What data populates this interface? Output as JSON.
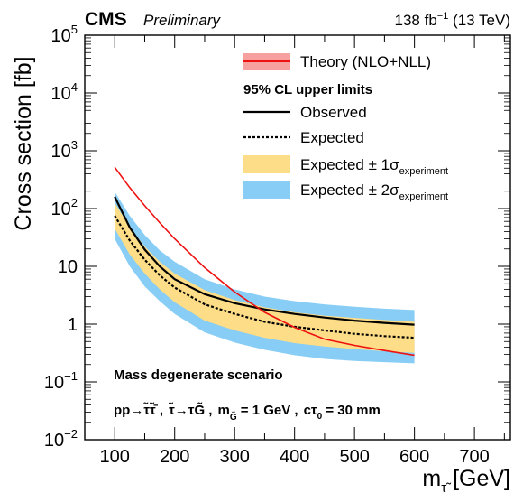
{
  "header": {
    "experiment": "CMS",
    "status": "Preliminary",
    "lumi_value": "138 fb",
    "lumi_exp": "−1",
    "lumi_energy": " (13 TeV)"
  },
  "legend": {
    "theory": "Theory (NLO+NLL)",
    "header": "95% CL upper limits",
    "observed": "Observed",
    "expected": "Expected",
    "band1_prefix": "Expected ± 1σ",
    "band1_sub": "experiment",
    "band2_prefix": "Expected ± 2σ",
    "band2_sub": "experiment"
  },
  "annotations": {
    "scenario": "Mass degenerate scenario",
    "process_a": "pp→τ̃τ̃̄ ,",
    "process_b": "τ̃→τG̃ ,",
    "process_mass_m": "m",
    "process_mass_sub": "G̃",
    "process_mass_val": " = 1 GeV ,",
    "process_ctau_c": "cτ",
    "process_ctau_sub": "0",
    "process_ctau_val": " = 30 mm"
  },
  "axes": {
    "y_label": "Cross section [fb]",
    "x_label_m": "m",
    "x_label_sub": "τ̃",
    "x_label_unit": " [GeV]"
  },
  "colors": {
    "observed": "#000000",
    "expected": "#000000",
    "band1": "#fddd87",
    "band2": "#87cdf5",
    "theory_line": "#ee1111",
    "theory_band": "#f6a0a0"
  },
  "chart_data": {
    "type": "line",
    "xlim": [
      50,
      760
    ],
    "ylim": [
      0.01,
      100000
    ],
    "y_scale": "log",
    "x_ticks": [
      100,
      200,
      300,
      400,
      500,
      600,
      700
    ],
    "y_tick_labels": [
      {
        "value": 0.01,
        "base": "10",
        "exp": "−2"
      },
      {
        "value": 0.1,
        "base": "10",
        "exp": "−1"
      },
      {
        "value": 1,
        "base": "1",
        "exp": ""
      },
      {
        "value": 10,
        "base": "10",
        "exp": ""
      },
      {
        "value": 100,
        "base": "10",
        "exp": "2"
      },
      {
        "value": 1000,
        "base": "10",
        "exp": "3"
      },
      {
        "value": 10000,
        "base": "10",
        "exp": "4"
      },
      {
        "value": 100000,
        "base": "10",
        "exp": "5"
      }
    ],
    "legend_position": "top-right",
    "theory": {
      "x": [
        100,
        125,
        150,
        175,
        200,
        250,
        300,
        350,
        400,
        450,
        500,
        550,
        600
      ],
      "y": [
        520,
        230,
        112,
        57,
        30,
        9.5,
        3.6,
        1.6,
        0.88,
        0.55,
        0.43,
        0.35,
        0.29
      ]
    },
    "observed": {
      "x": [
        100,
        125,
        150,
        175,
        200,
        250,
        300,
        350,
        400,
        450,
        500,
        550,
        600
      ],
      "y": [
        160,
        47,
        19.5,
        10.0,
        6.0,
        3.3,
        2.3,
        1.8,
        1.5,
        1.3,
        1.15,
        1.05,
        0.98
      ]
    },
    "expected": {
      "x": [
        100,
        125,
        150,
        175,
        200,
        250,
        300,
        350,
        400,
        450,
        500,
        550,
        600
      ],
      "y": [
        75,
        28,
        13,
        7,
        4.3,
        2.2,
        1.5,
        1.1,
        0.9,
        0.78,
        0.68,
        0.62,
        0.58
      ]
    },
    "band_1sigma": {
      "x": [
        100,
        125,
        150,
        175,
        200,
        250,
        300,
        350,
        400,
        450,
        500,
        550,
        600
      ],
      "low": [
        45,
        16,
        7.5,
        4.0,
        2.4,
        1.15,
        0.78,
        0.58,
        0.47,
        0.41,
        0.37,
        0.34,
        0.32
      ],
      "high": [
        125,
        48,
        22,
        12,
        7.5,
        3.9,
        2.6,
        1.95,
        1.6,
        1.4,
        1.28,
        1.18,
        1.1
      ]
    },
    "band_2sigma": {
      "x": [
        100,
        125,
        150,
        175,
        200,
        250,
        300,
        350,
        400,
        450,
        500,
        550,
        600
      ],
      "low": [
        30,
        10,
        4.5,
        2.5,
        1.5,
        0.72,
        0.48,
        0.36,
        0.29,
        0.25,
        0.23,
        0.22,
        0.21
      ],
      "high": [
        195,
        75,
        35,
        19,
        12,
        6.0,
        4.0,
        3.0,
        2.5,
        2.2,
        2.0,
        1.85,
        1.75
      ]
    }
  }
}
